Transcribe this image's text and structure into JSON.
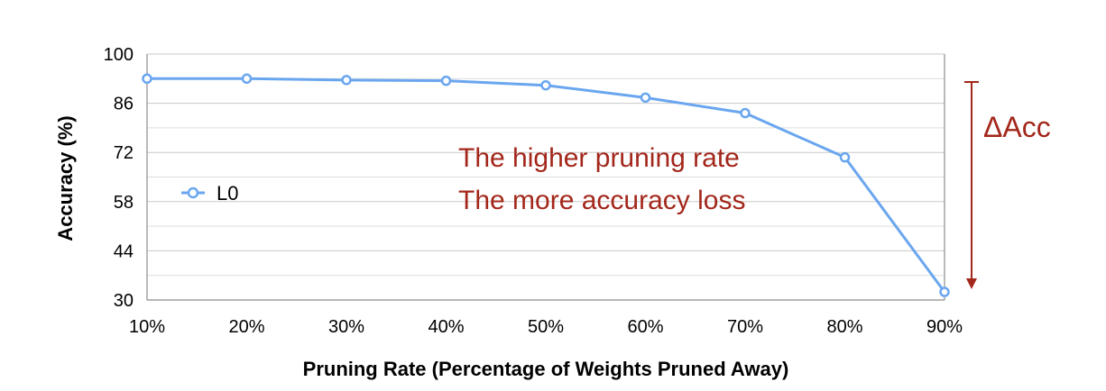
{
  "chart_data": {
    "type": "line",
    "categories": [
      "10%",
      "20%",
      "30%",
      "40%",
      "50%",
      "60%",
      "70%",
      "80%",
      "90%"
    ],
    "series": [
      {
        "name": "L0",
        "values": [
          93.0,
          93.0,
          92.6,
          92.4,
          91.1,
          87.6,
          83.2,
          70.6,
          32.3
        ],
        "color": "#6aa6ef"
      }
    ],
    "title": "",
    "xlabel": "Pruning Rate (Percentage of Weights Pruned Away)",
    "ylabel": "Accuracy (%)",
    "ylim": [
      30,
      100
    ],
    "yticks": [
      30,
      44,
      58,
      72,
      86,
      100
    ],
    "grid": true,
    "legend_position": "left",
    "annotations": {
      "line1": "The higher pruning rate",
      "line2": "The more accuracy loss",
      "delta_label": "ΔAcc",
      "color": "#a3271b"
    }
  }
}
